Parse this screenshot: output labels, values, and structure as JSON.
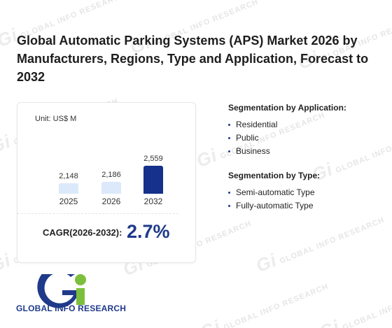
{
  "title": "Global Automatic Parking Systems (APS) Market 2026 by Manufacturers, Regions, Type and Application, Forecast to 2032",
  "watermark": "GLOBAL INFO RESEARCH",
  "chart": {
    "unit_label": "Unit: US$ M",
    "cagr_label": "CAGR(2026-2032):",
    "cagr_value": "2.7%"
  },
  "chart_data": {
    "type": "bar",
    "categories": [
      "2025",
      "2026",
      "2032"
    ],
    "values": [
      2148,
      2186,
      2559
    ],
    "value_labels": [
      "2,148",
      "2,186",
      "2,559"
    ],
    "colors": [
      "#dbe9fb",
      "#dbe9fb",
      "#16318a"
    ],
    "title": "",
    "xlabel": "",
    "ylabel": ""
  },
  "segmentation": {
    "application": {
      "heading": "Segmentation by Application:",
      "items": [
        "Residential",
        "Public",
        "Business"
      ]
    },
    "type": {
      "heading": "Segmentation by Type:",
      "items": [
        "Semi-automatic Type",
        "Fully-automatic Type"
      ]
    }
  },
  "logo": {
    "text": "GLOBAL INFO RESEARCH",
    "colors": {
      "blue": "#1f3a8a",
      "green": "#7cbf3c"
    }
  }
}
